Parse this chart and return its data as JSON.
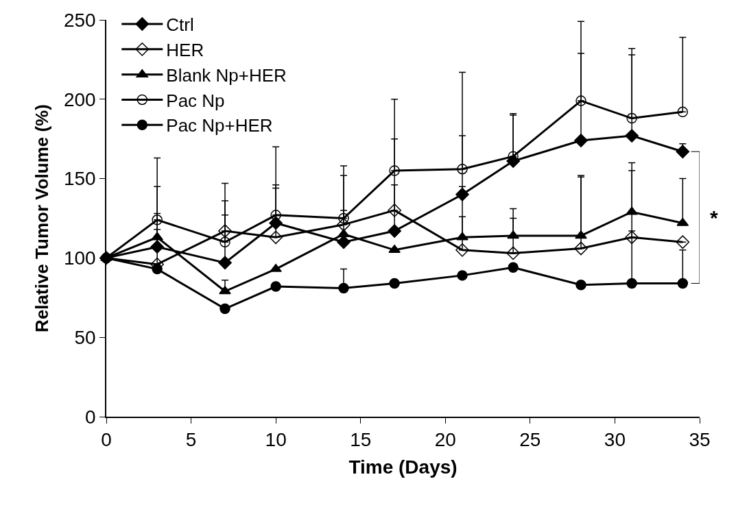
{
  "chart_data": {
    "type": "line",
    "xlabel": "Time (Days)",
    "ylabel": "Relative Tumor Volume (%)",
    "x": [
      0,
      3,
      7,
      10,
      14,
      17,
      21,
      24,
      28,
      31,
      34
    ],
    "xlim": [
      0,
      35
    ],
    "xticks": [
      0,
      5,
      10,
      15,
      20,
      25,
      30,
      35
    ],
    "ylim": [
      0,
      250
    ],
    "yticks": [
      0,
      50,
      100,
      150,
      200,
      250
    ],
    "grid": false,
    "legend": "top left",
    "line_style": "solid",
    "series": [
      {
        "name": "Ctrl",
        "color": "#000000",
        "marker": "diamond",
        "values": [
          100,
          107,
          97,
          122,
          110,
          117,
          140,
          161,
          174,
          177,
          167
        ],
        "errors": [
          null,
          [
            107,
            128
          ],
          [
            97,
            127
          ],
          [
            122,
            146
          ],
          [
            110,
            130
          ],
          [
            117,
            146
          ],
          [
            140,
            177
          ],
          [
            161,
            190
          ],
          [
            174,
            229
          ],
          [
            177,
            228
          ],
          [
            167,
            172
          ]
        ]
      },
      {
        "name": "HER",
        "color": "#000000",
        "marker": "diamond-open",
        "values": [
          100,
          96,
          117,
          113,
          121,
          130,
          105,
          103,
          106,
          113,
          110
        ],
        "errors": [
          null,
          [
            96,
            118
          ],
          [
            117,
            136
          ],
          [
            113,
            144
          ],
          [
            121,
            152
          ],
          [
            130,
            175
          ],
          [
            105,
            145
          ],
          [
            103,
            125
          ],
          [
            106,
            151
          ],
          [
            113,
            155
          ],
          null
        ]
      },
      {
        "name": "Blank Np+HER",
        "color": "#000000",
        "marker": "triangle",
        "values": [
          100,
          113,
          79,
          93,
          115,
          105,
          113,
          114,
          114,
          129,
          122
        ],
        "errors": [
          null,
          [
            113,
            145
          ],
          [
            79,
            86
          ],
          null,
          null,
          null,
          [
            113,
            126
          ],
          [
            114,
            131
          ],
          [
            114,
            152
          ],
          [
            129,
            160
          ],
          [
            122,
            150
          ]
        ]
      },
      {
        "name": "Pac Np",
        "color": "#000000",
        "marker": "circle-open",
        "values": [
          100,
          124,
          110,
          127,
          125,
          155,
          156,
          164,
          199,
          188,
          192
        ],
        "errors": [
          null,
          [
            124,
            163
          ],
          [
            110,
            147
          ],
          [
            127,
            170
          ],
          [
            125,
            158
          ],
          [
            155,
            200
          ],
          [
            156,
            217
          ],
          [
            164,
            191
          ],
          [
            199,
            249
          ],
          [
            188,
            232
          ],
          [
            192,
            239
          ]
        ]
      },
      {
        "name": "Pac Np+HER",
        "color": "#000000",
        "marker": "circle",
        "values": [
          100,
          93,
          68,
          82,
          81,
          84,
          89,
          94,
          83,
          84,
          84
        ],
        "errors": [
          null,
          null,
          null,
          null,
          [
            81,
            93
          ],
          null,
          null,
          null,
          null,
          [
            84,
            117
          ],
          [
            84,
            105
          ]
        ]
      }
    ],
    "annotations": [
      "*"
    ]
  }
}
